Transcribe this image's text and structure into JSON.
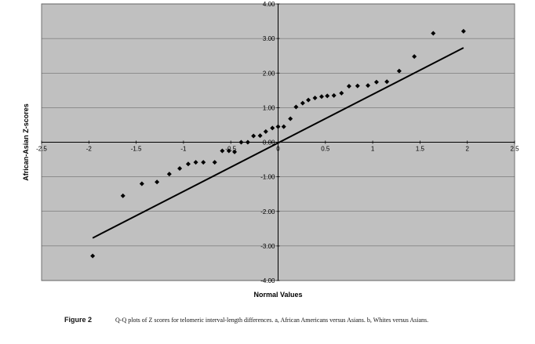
{
  "chart_data": {
    "type": "scatter",
    "xlabel": "Normal Values",
    "ylabel": "African-Asian Z-scores",
    "xlim": [
      -2.5,
      2.5
    ],
    "ylim": [
      -4.0,
      4.0
    ],
    "x_ticks": [
      "-2.5",
      "-2",
      "-1.5",
      "-1",
      "-0.5",
      "0",
      "0.5",
      "1",
      "1.5",
      "2",
      "2.5"
    ],
    "y_ticks": [
      "4.00",
      "3.00",
      "2.00",
      "1.00",
      "0.00",
      "-1.00",
      "-2.00",
      "-3.00",
      "-4.00"
    ],
    "grid": "horizontal",
    "background": "#c0c0c0",
    "marker_color": "#000000",
    "series": [
      {
        "points": [
          [
            -1.96,
            -3.29
          ],
          [
            -1.64,
            -1.55
          ],
          [
            -1.44,
            -1.2
          ],
          [
            -1.28,
            -1.15
          ],
          [
            -1.15,
            -0.92
          ],
          [
            -1.04,
            -0.76
          ],
          [
            -0.95,
            -0.63
          ],
          [
            -0.87,
            -0.58
          ],
          [
            -0.79,
            -0.58
          ],
          [
            -0.67,
            -0.58
          ],
          [
            -0.59,
            -0.25
          ],
          [
            -0.52,
            -0.25
          ],
          [
            -0.46,
            -0.28
          ],
          [
            -0.39,
            0.0
          ],
          [
            -0.32,
            0.0
          ],
          [
            -0.26,
            0.18
          ],
          [
            -0.19,
            0.19
          ],
          [
            -0.13,
            0.31
          ],
          [
            -0.06,
            0.41
          ],
          [
            0.0,
            0.45
          ],
          [
            0.06,
            0.45
          ],
          [
            0.13,
            0.68
          ],
          [
            0.19,
            1.02
          ],
          [
            0.26,
            1.13
          ],
          [
            0.32,
            1.22
          ],
          [
            0.39,
            1.28
          ],
          [
            0.46,
            1.32
          ],
          [
            0.52,
            1.34
          ],
          [
            0.59,
            1.35
          ],
          [
            0.67,
            1.42
          ],
          [
            0.75,
            1.62
          ],
          [
            0.84,
            1.63
          ],
          [
            0.95,
            1.64
          ],
          [
            1.04,
            1.74
          ],
          [
            1.15,
            1.75
          ],
          [
            1.28,
            2.06
          ],
          [
            1.44,
            2.48
          ],
          [
            1.64,
            3.15
          ],
          [
            1.96,
            3.21
          ]
        ]
      }
    ],
    "reference_line": {
      "from": [
        -1.96,
        -2.77
      ],
      "to": [
        1.96,
        2.73
      ]
    }
  },
  "caption": {
    "label": "Figure 2",
    "text": "Q-Q plots of Z scores for telomeric interval-length differences. a, African Americans versus Asians. b, Whites versus Asians."
  }
}
